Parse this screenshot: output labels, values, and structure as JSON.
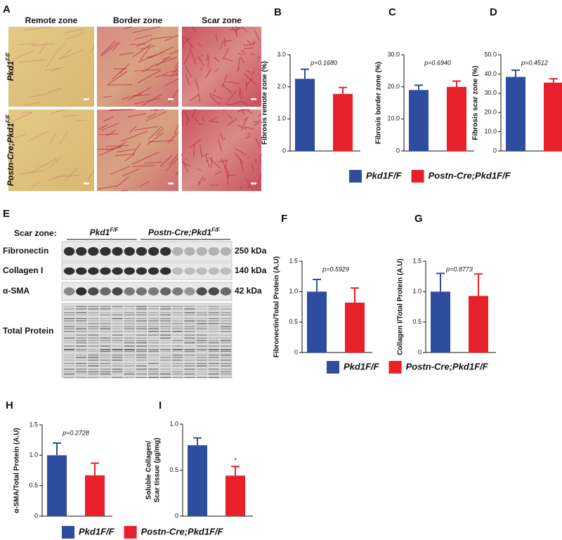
{
  "panel_a": {
    "letter": "A",
    "columns": [
      "Remote zone",
      "Border zone",
      "Scar zone"
    ],
    "rows": [
      {
        "base": "Pkd1",
        "sup": "F/F"
      },
      {
        "base": "Postn-Cre;Pkd1",
        "sup": "F/F"
      }
    ]
  },
  "panel_e": {
    "letter": "E",
    "zone_label": "Scar zone:",
    "groups": [
      {
        "base": "Pkd1",
        "sup": "F/F"
      },
      {
        "base": "Postn-Cre;Pkd1",
        "sup": "F/F"
      }
    ],
    "blots": [
      {
        "name": "Fibronectin",
        "size": "250 kDa"
      },
      {
        "name": "Collagen I",
        "size": "140 kDa"
      },
      {
        "name": "α-SMA",
        "size": "42 kDa"
      },
      {
        "name": "Total Protein"
      }
    ]
  },
  "legend": {
    "items": [
      {
        "name": "Pkd1F/F",
        "color": "#2f4d9f"
      },
      {
        "name": "Postn-Cre;Pkd1F/F",
        "color": "#e8202a"
      }
    ]
  },
  "chart_data": [
    {
      "type": "bar",
      "letter": "B",
      "ylabel": [
        "Fibrosis remote zone (%)"
      ],
      "values": [
        2.25,
        1.78
      ],
      "errors": [
        0.3,
        0.2
      ],
      "annotation": "p=0.1680",
      "ylim": [
        0,
        3
      ],
      "yticks": [
        0,
        {
          "value": 1,
          "label": "1.0"
        },
        {
          "value": 2,
          "label": "2.0"
        },
        {
          "value": 3,
          "label": "3.0"
        }
      ]
    },
    {
      "type": "bar",
      "letter": "C",
      "ylabel": [
        "Fibrosis border zone (%)"
      ],
      "values": [
        19,
        20
      ],
      "errors": [
        1.5,
        1.8
      ],
      "annotation": "p=0.6940",
      "ylim": [
        0,
        30
      ],
      "yticks": [
        0,
        {
          "value": 10,
          "label": "10.0"
        },
        {
          "value": 20,
          "label": "20.0"
        },
        {
          "value": 30,
          "label": "30.0"
        }
      ]
    },
    {
      "type": "bar",
      "letter": "D",
      "ylabel": [
        "Fibrosis scar zone (%)"
      ],
      "values": [
        38.5,
        35.5
      ],
      "errors": [
        3.5,
        2
      ],
      "annotation": "p=0.4512",
      "ylim": [
        0,
        50
      ],
      "yticks": [
        0,
        {
          "value": 10,
          "label": "10.0"
        },
        {
          "value": 20,
          "label": "20.0"
        },
        {
          "value": 30,
          "label": "30.0"
        },
        {
          "value": 40,
          "label": "40.0"
        },
        {
          "value": 50,
          "label": "50.0"
        }
      ]
    },
    {
      "type": "bar",
      "letter": "F",
      "ylabel": [
        "Fibronectin/Total Protein (A.U)"
      ],
      "values": [
        1.0,
        0.82
      ],
      "errors": [
        0.2,
        0.24
      ],
      "annotation": "p=0.5929",
      "ylim": [
        0,
        1.5
      ],
      "yticks": [
        0,
        0.5,
        {
          "value": 1,
          "label": "1.0"
        },
        1.5
      ]
    },
    {
      "type": "bar",
      "letter": "G",
      "ylabel": [
        "Collagen I/Total Protein (A.U)"
      ],
      "values": [
        1.0,
        0.93
      ],
      "errors": [
        0.3,
        0.36
      ],
      "annotation": "p=0.8773",
      "ylim": [
        0,
        1.5
      ],
      "yticks": [
        0,
        0.5,
        {
          "value": 1,
          "label": "1.0"
        },
        1.5
      ]
    },
    {
      "type": "bar",
      "letter": "H",
      "ylabel": [
        "α-SMA/Total Protein (A.U)"
      ],
      "values": [
        1.0,
        0.67
      ],
      "errors": [
        0.2,
        0.2
      ],
      "annotation": "p=0.2728",
      "ylim": [
        0,
        1.5
      ],
      "yticks": [
        0,
        0.5,
        {
          "value": 1,
          "label": "1.0"
        },
        1.5
      ]
    },
    {
      "type": "bar",
      "letter": "I",
      "ylabel": [
        "Soluble Collagen/",
        "Scar tissue (µg/mg)"
      ],
      "values": [
        0.77,
        0.44
      ],
      "errors": [
        0.08,
        0.1
      ],
      "annotation": "*",
      "ylim": [
        0,
        1
      ],
      "yticks": [
        0,
        0.5,
        {
          "value": 1,
          "label": "1.0"
        }
      ]
    }
  ]
}
